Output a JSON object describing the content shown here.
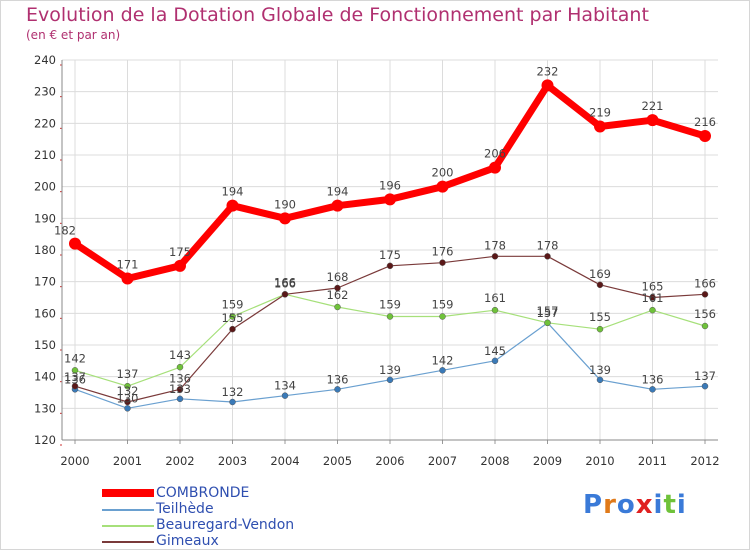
{
  "title": "Evolution de la Dotation Globale de Fonctionnement par Habitant",
  "subtitle": "(en € et par an)",
  "logo_text": "Proxiti",
  "chart_data": {
    "type": "line",
    "title": "Evolution de la Dotation Globale de Fonctionnement par Habitant",
    "subtitle": "(en € et par an)",
    "xlabel": "",
    "ylabel": "",
    "x": [
      "2000",
      "2001",
      "2002",
      "2003",
      "2004",
      "2005",
      "2006",
      "2007",
      "2008",
      "2009",
      "2010",
      "2011",
      "2012"
    ],
    "ylim": [
      120,
      240
    ],
    "yticks": [
      "120",
      "130",
      "140",
      "150",
      "160",
      "170",
      "180",
      "190",
      "200",
      "210",
      "220",
      "230",
      "240"
    ],
    "grid": true,
    "legend_position": "bottom-left",
    "series": [
      {
        "name": "COMBRONDE",
        "color": "#ff0000",
        "values": [
          182,
          171,
          175,
          194,
          190,
          194,
          196,
          200,
          206,
          232,
          219,
          221,
          216
        ],
        "labels": [
          "182",
          "171",
          "175",
          "194",
          "190",
          "194",
          "196",
          "200",
          "206",
          "232",
          "219",
          "221",
          "216"
        ]
      },
      {
        "name": "Teilhède",
        "color": "#6aa0d0",
        "marker": "#3a7ab8",
        "values": [
          136,
          130,
          133,
          132,
          134,
          136,
          139,
          142,
          145,
          157,
          139,
          136,
          137
        ],
        "labels": [
          "136",
          "130",
          "133",
          "132",
          "134",
          "136",
          "139",
          "142",
          "145",
          "157",
          "139",
          "136",
          "137"
        ]
      },
      {
        "name": "Beauregard-Vendon",
        "color": "#a6e07a",
        "marker": "#6fc23a",
        "values": [
          142,
          137,
          143,
          159,
          166,
          162,
          159,
          159,
          161,
          157,
          155,
          161,
          156
        ],
        "labels": [
          "142",
          "137",
          "143",
          "159",
          "166",
          "162",
          "159",
          "159",
          "161",
          "157",
          "155",
          "161",
          "156"
        ]
      },
      {
        "name": "Gimeaux",
        "color": "#7a3a3a",
        "marker": "#5a1818",
        "values": [
          137,
          132,
          136,
          155,
          166,
          168,
          175,
          176,
          178,
          178,
          169,
          165,
          166
        ],
        "labels": [
          "137",
          "132",
          "136",
          "155",
          "166",
          "168",
          "175",
          "176",
          "178",
          "178",
          "169",
          "165",
          "166"
        ]
      }
    ]
  }
}
